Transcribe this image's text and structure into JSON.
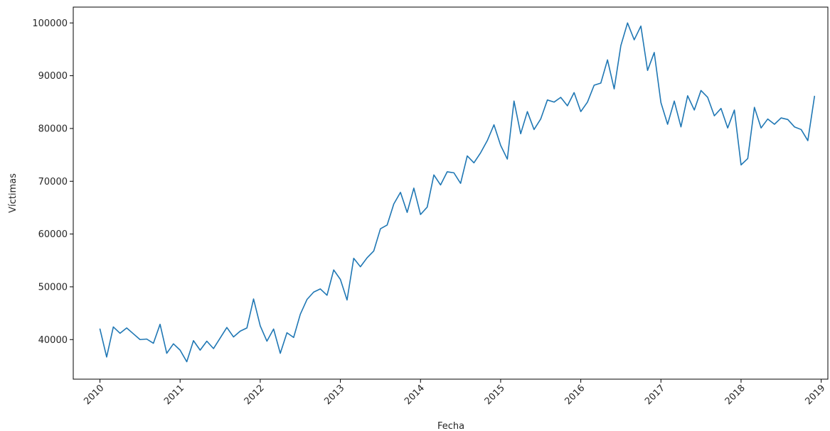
{
  "chart_data": {
    "type": "line",
    "title": "",
    "xlabel": "Fecha",
    "ylabel": "Víctimas",
    "x_unit": "month",
    "xlim": [
      "2009-09",
      "2019-02"
    ],
    "ylim": [
      32500,
      103000
    ],
    "xticks": [
      "2010",
      "2011",
      "2012",
      "2013",
      "2014",
      "2015",
      "2016",
      "2017",
      "2018",
      "2019"
    ],
    "yticks": [
      40000,
      50000,
      60000,
      70000,
      80000,
      90000,
      100000
    ],
    "ytick_labels": [
      "40000",
      "50000",
      "60000",
      "70000",
      "80000",
      "90000",
      "100000"
    ],
    "grid": false,
    "series": [
      {
        "color": "#1f77b4",
        "x": [
          "2010-01",
          "2010-02",
          "2010-03",
          "2010-04",
          "2010-05",
          "2010-06",
          "2010-07",
          "2010-08",
          "2010-09",
          "2010-10",
          "2010-11",
          "2010-12",
          "2011-01",
          "2011-02",
          "2011-03",
          "2011-04",
          "2011-05",
          "2011-06",
          "2011-07",
          "2011-08",
          "2011-09",
          "2011-10",
          "2011-11",
          "2011-12",
          "2012-01",
          "2012-02",
          "2012-03",
          "2012-04",
          "2012-05",
          "2012-06",
          "2012-07",
          "2012-08",
          "2012-09",
          "2012-10",
          "2012-11",
          "2012-12",
          "2013-01",
          "2013-02",
          "2013-03",
          "2013-04",
          "2013-05",
          "2013-06",
          "2013-07",
          "2013-08",
          "2013-09",
          "2013-10",
          "2013-11",
          "2013-12",
          "2014-01",
          "2014-02",
          "2014-03",
          "2014-04",
          "2014-05",
          "2014-06",
          "2014-07",
          "2014-08",
          "2014-09",
          "2014-10",
          "2014-11",
          "2014-12",
          "2015-01",
          "2015-02",
          "2015-03",
          "2015-04",
          "2015-05",
          "2015-06",
          "2015-07",
          "2015-08",
          "2015-09",
          "2015-10",
          "2015-11",
          "2015-12",
          "2016-01",
          "2016-02",
          "2016-03",
          "2016-04",
          "2016-05",
          "2016-06",
          "2016-07",
          "2016-08",
          "2016-09",
          "2016-10",
          "2016-11",
          "2016-12",
          "2017-01",
          "2017-02",
          "2017-03",
          "2017-04",
          "2017-05",
          "2017-06",
          "2017-07",
          "2017-08",
          "2017-09",
          "2017-10",
          "2017-11",
          "2017-12",
          "2018-01",
          "2018-02",
          "2018-03",
          "2018-04",
          "2018-05",
          "2018-06",
          "2018-07",
          "2018-08",
          "2018-09",
          "2018-10",
          "2018-11",
          "2018-12"
        ],
        "values": [
          42000,
          36700,
          42400,
          41200,
          42200,
          41100,
          40000,
          40100,
          39300,
          42900,
          37400,
          39200,
          38000,
          35800,
          39800,
          38000,
          39700,
          38300,
          40300,
          42300,
          40500,
          41600,
          42200,
          47700,
          42600,
          39700,
          42000,
          37400,
          41300,
          40400,
          44800,
          47600,
          49000,
          49600,
          48400,
          53200,
          51400,
          47500,
          55400,
          53800,
          55500,
          56800,
          61000,
          61700,
          65700,
          67900,
          64100,
          68700,
          63700,
          65100,
          71200,
          69300,
          71800,
          71600,
          69600,
          74800,
          73500,
          75400,
          77700,
          80700,
          76800,
          74200,
          85200,
          79000,
          83200,
          79800,
          81800,
          85400,
          85000,
          85900,
          84300,
          86800,
          83200,
          85000,
          88200,
          88600,
          93000,
          87500,
          95700,
          100000,
          96800,
          99400,
          91000,
          94400,
          84900,
          80800,
          85200,
          80300,
          86200,
          83500,
          87200,
          85900,
          82400,
          83800,
          80100,
          83500,
          73100,
          74300,
          84000,
          80100,
          81800,
          80800,
          82000,
          81700,
          80300,
          79800,
          77700,
          86100
        ]
      }
    ]
  }
}
